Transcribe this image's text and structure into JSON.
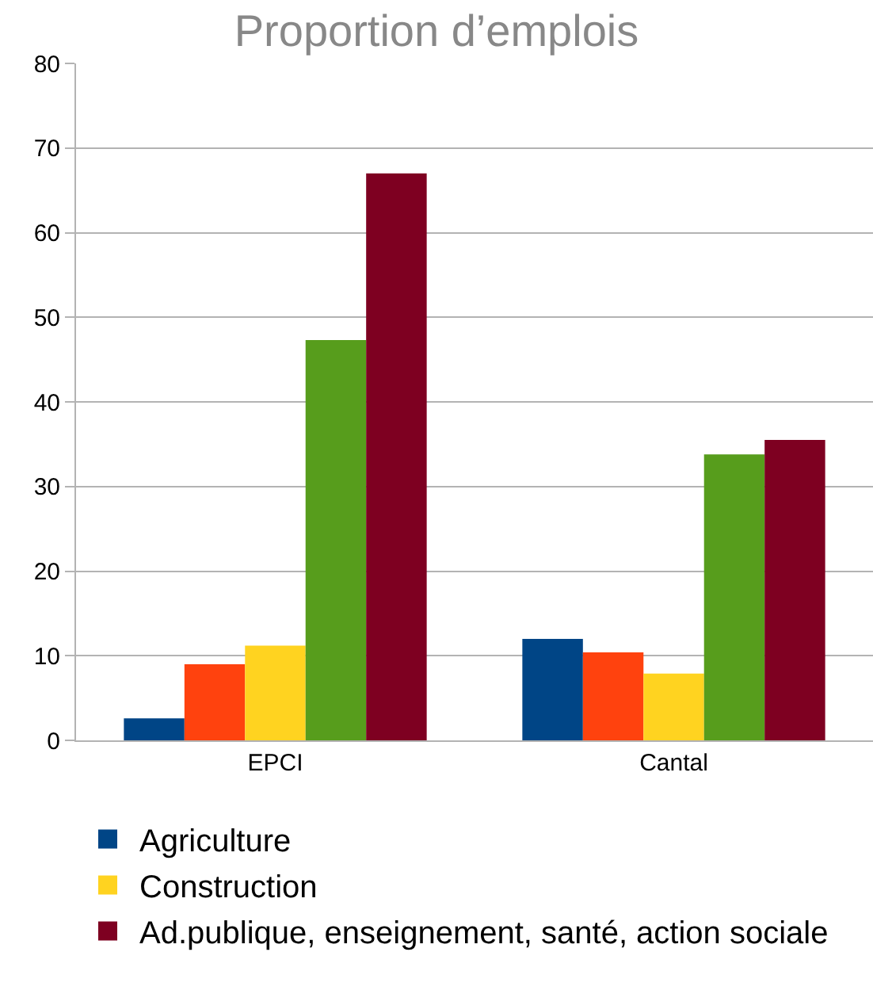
{
  "chart_data": {
    "type": "bar",
    "title": "Proportion d’emplois",
    "categories": [
      "EPCI",
      "Cantal"
    ],
    "series": [
      {
        "name": "Agriculture",
        "color": "#004586",
        "values": [
          2.6,
          12
        ]
      },
      {
        "color": "#ff420e",
        "values": [
          9,
          10.4
        ]
      },
      {
        "name": "Construction",
        "color": "#ffd320",
        "values": [
          11.2,
          7.9
        ]
      },
      {
        "color": "#579d1c",
        "values": [
          47.3,
          33.8
        ]
      },
      {
        "name": "Ad.publique, enseignement, santé, action sociale",
        "color": "#7e0021",
        "values": [
          67,
          35.5
        ]
      }
    ],
    "ylim": [
      0,
      80
    ],
    "yticks": [
      0,
      10,
      20,
      30,
      40,
      50,
      60,
      70,
      80
    ],
    "grid": "y",
    "legend": "bottom"
  }
}
